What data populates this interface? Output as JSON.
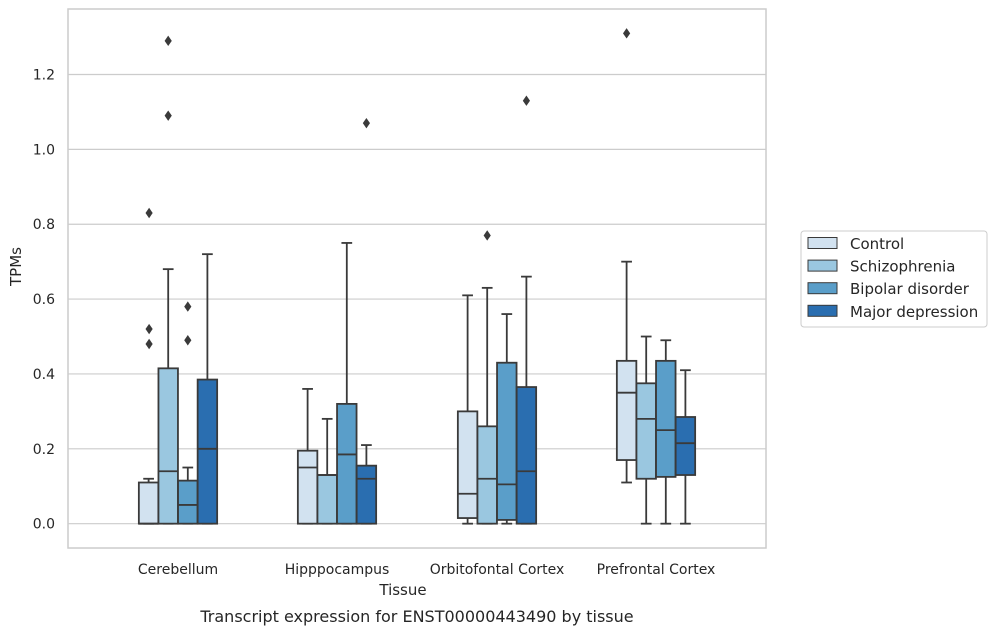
{
  "chart_data": {
    "type": "boxplot",
    "xlabel": "Tissue",
    "ylabel": "TPMs",
    "caption": "Transcript expression for ENST00000443490 by tissue",
    "ylim": [
      -0.065,
      1.375
    ],
    "yticks": [
      0.0,
      0.2,
      0.4,
      0.6,
      0.8,
      1.0,
      1.2
    ],
    "grid": "horizontal",
    "legend_position": "right",
    "categories": [
      "Cerebellum",
      "Hipppocampus",
      "Orbitofontal Cortex",
      "Prefrontal Cortex"
    ],
    "series": [
      {
        "name": "Control",
        "color": "#d2e2f0",
        "boxes": [
          {
            "whislo": 0.0,
            "q1": 0.0,
            "med": 0.0,
            "q3": 0.11,
            "whishi": 0.12,
            "fliers": []
          },
          {
            "whislo": 0.0,
            "q1": 0.0,
            "med": 0.15,
            "q3": 0.195,
            "whishi": 0.36,
            "fliers": []
          },
          {
            "whislo": 0.0,
            "q1": 0.015,
            "med": 0.08,
            "q3": 0.3,
            "whishi": 0.61,
            "fliers": []
          },
          {
            "whislo": 0.11,
            "q1": 0.17,
            "med": 0.35,
            "q3": 0.435,
            "whishi": 0.7,
            "fliers": [
              1.31
            ]
          }
        ]
      },
      {
        "name": "Schizophrenia",
        "color": "#9ac7e0",
        "boxes": [
          {
            "whislo": 0.0,
            "q1": 0.0,
            "med": 0.14,
            "q3": 0.415,
            "whishi": 0.68,
            "fliers": [
              1.29,
              1.09
            ]
          },
          {
            "whislo": 0.0,
            "q1": 0.0,
            "med": 0.13,
            "q3": 0.13,
            "whishi": 0.28,
            "fliers": []
          },
          {
            "whislo": 0.0,
            "q1": 0.0,
            "med": 0.12,
            "q3": 0.26,
            "whishi": 0.63,
            "fliers": [
              0.77
            ]
          },
          {
            "whislo": 0.0,
            "q1": 0.12,
            "med": 0.28,
            "q3": 0.375,
            "whishi": 0.5,
            "fliers": []
          }
        ]
      },
      {
        "name": "Bipolar disorder",
        "color": "#5a9ec9",
        "boxes": [
          {
            "whislo": 0.0,
            "q1": 0.0,
            "med": 0.05,
            "q3": 0.115,
            "whishi": 0.15,
            "fliers": [
              0.58,
              0.49
            ]
          },
          {
            "whislo": 0.0,
            "q1": 0.0,
            "med": 0.185,
            "q3": 0.32,
            "whishi": 0.75,
            "fliers": []
          },
          {
            "whislo": 0.0,
            "q1": 0.01,
            "med": 0.105,
            "q3": 0.43,
            "whishi": 0.56,
            "fliers": []
          },
          {
            "whislo": 0.0,
            "q1": 0.125,
            "med": 0.25,
            "q3": 0.435,
            "whishi": 0.49,
            "fliers": []
          }
        ]
      },
      {
        "name": "Major depression",
        "color": "#2a6eb0",
        "boxes": [
          {
            "whislo": 0.0,
            "q1": 0.0,
            "med": 0.2,
            "q3": 0.385,
            "whishi": 0.72,
            "fliers": []
          },
          {
            "whislo": 0.0,
            "q1": 0.0,
            "med": 0.12,
            "q3": 0.155,
            "whishi": 0.21,
            "fliers": [
              1.07
            ]
          },
          {
            "whislo": 0.0,
            "q1": 0.0,
            "med": 0.14,
            "q3": 0.365,
            "whishi": 0.66,
            "fliers": [
              1.13
            ]
          },
          {
            "whislo": 0.0,
            "q1": 0.13,
            "med": 0.215,
            "q3": 0.285,
            "whishi": 0.41,
            "fliers": []
          }
        ]
      }
    ],
    "extra_fliers": [
      {
        "series": 0,
        "category": 0,
        "values": [
          0.83,
          0.52,
          0.48
        ]
      }
    ]
  }
}
